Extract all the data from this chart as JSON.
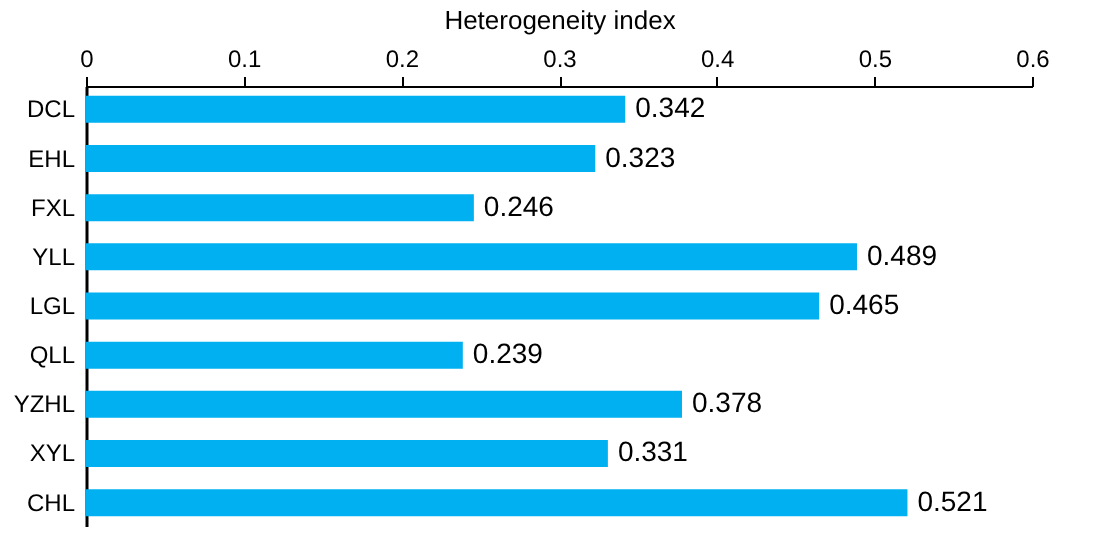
{
  "chart_data": {
    "type": "bar",
    "orientation": "horizontal",
    "xlabel": "Heterogeneity index",
    "categories": [
      "DCL",
      "EHL",
      "FXL",
      "YLL",
      "LGL",
      "QLL",
      "YZHL",
      "XYL",
      "CHL"
    ],
    "values": [
      0.342,
      0.323,
      0.246,
      0.489,
      0.465,
      0.239,
      0.378,
      0.331,
      0.521
    ],
    "color": "#00b0f0",
    "xlim": [
      0,
      0.6
    ],
    "xticks": [
      0,
      0.1,
      0.2,
      0.3,
      0.4,
      0.5,
      0.6
    ],
    "grid": false,
    "data_labels": true
  }
}
